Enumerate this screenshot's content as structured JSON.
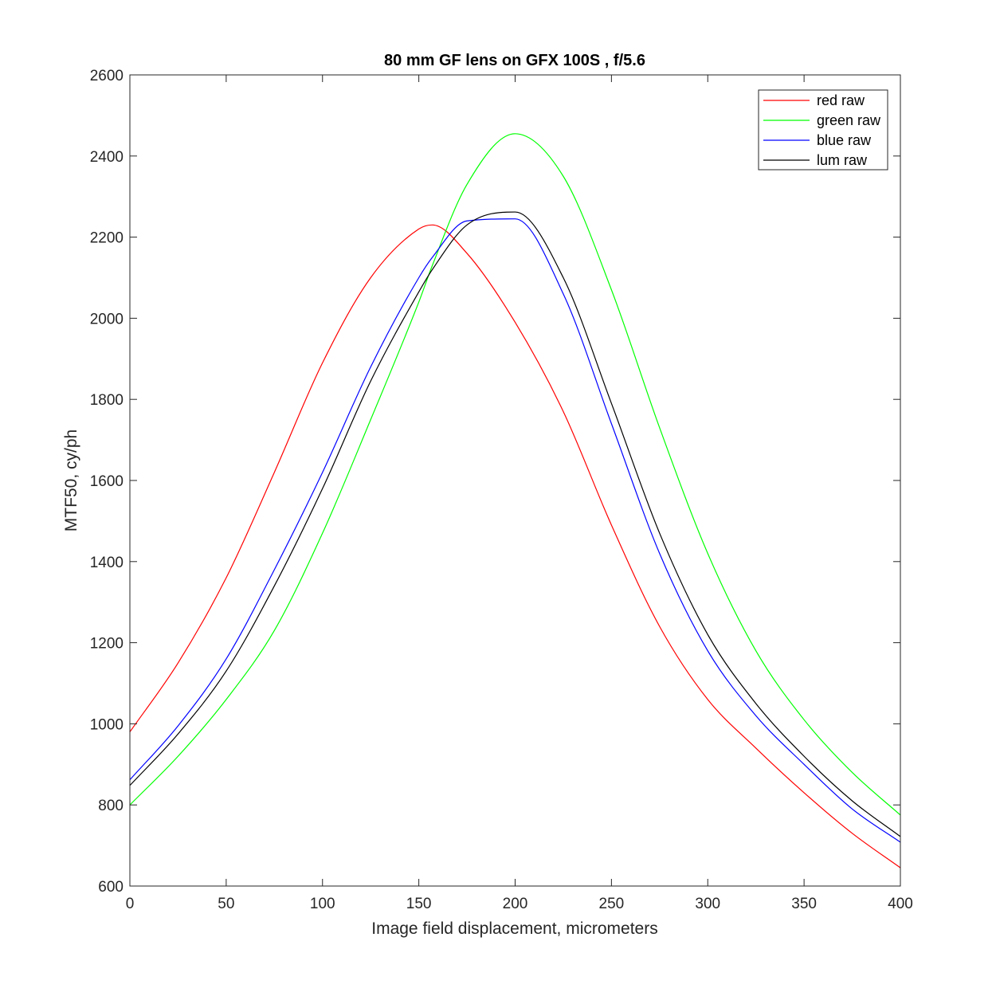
{
  "chart_data": {
    "type": "line",
    "title": "80 mm GF lens on GFX 100S , f/5.6",
    "xlabel": "Image field displacement, micrometers",
    "ylabel": "MTF50, cy/ph",
    "xlim": [
      0,
      400
    ],
    "ylim": [
      600,
      2600
    ],
    "xticks": [
      0,
      50,
      100,
      150,
      200,
      250,
      300,
      350,
      400
    ],
    "yticks": [
      600,
      800,
      1000,
      1200,
      1400,
      1600,
      1800,
      2000,
      2200,
      2400,
      2600
    ],
    "grid": false,
    "legend": "top-right",
    "x": [
      0,
      25,
      50,
      75,
      100,
      125,
      150,
      157,
      175,
      200,
      225,
      250,
      275,
      300,
      325,
      350,
      375,
      400
    ],
    "series": [
      {
        "name": "red raw",
        "color": "#ff0000",
        "values": [
          980,
          1150,
          1360,
          1620,
          1890,
          2100,
          2220,
          2230,
          2160,
          1990,
          1770,
          1490,
          1240,
          1060,
          940,
          830,
          730,
          645
        ]
      },
      {
        "name": "green raw",
        "color": "#00ff00",
        "values": [
          800,
          920,
          1060,
          1230,
          1470,
          1750,
          2040,
          2130,
          2330,
          2455,
          2350,
          2070,
          1730,
          1420,
          1180,
          1010,
          880,
          775
        ]
      },
      {
        "name": "blue raw",
        "color": "#0000ff",
        "values": [
          862,
          995,
          1160,
          1380,
          1620,
          1880,
          2100,
          2150,
          2240,
          2245,
          2060,
          1740,
          1420,
          1180,
          1020,
          900,
          790,
          708
        ]
      },
      {
        "name": "lum raw",
        "color": "#000000",
        "values": [
          848,
          975,
          1130,
          1340,
          1580,
          1845,
          2065,
          2120,
          2230,
          2262,
          2100,
          1790,
          1470,
          1220,
          1050,
          920,
          810,
          722
        ]
      }
    ]
  }
}
